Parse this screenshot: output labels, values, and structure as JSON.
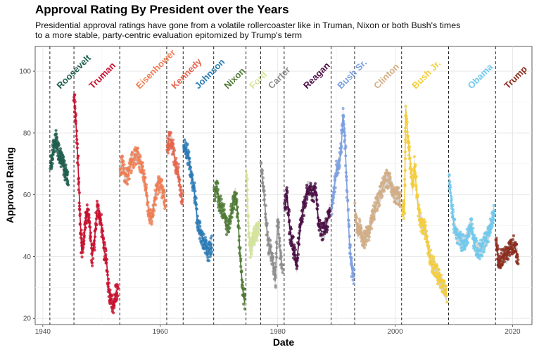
{
  "title": "Approval Rating By President over the Years",
  "subtitle_lines": [
    "Presidential approval ratings have gone from a volatile rollercoaster like in Truman, Nixon or both Bush's times",
    "to a more stable, party-centric evaluation epitomized by Trump's term"
  ],
  "chart_data": {
    "type": "scatter",
    "title": "Approval Rating By President over the Years",
    "xlabel": "Date",
    "ylabel": "Approval Rating",
    "xlim": [
      1938.7,
      2023.3
    ],
    "ylim": [
      18,
      108
    ],
    "x_ticks": [
      1940,
      1960,
      1980,
      2000,
      2020
    ],
    "y_ticks": [
      20,
      40,
      60,
      80,
      100
    ],
    "grid": true,
    "smooth_trend": true,
    "term_boundaries": [
      1941.2,
      1945.3,
      1953.1,
      1961.1,
      1963.9,
      1969.1,
      1974.6,
      1977.1,
      1981.1,
      1989.1,
      1993.1,
      2001.1,
      2009.1,
      2017.1
    ],
    "series": [
      {
        "name": "Roosevelt",
        "color": "#1f5e4e",
        "label_x": 1943.0,
        "points": [
          [
            1941.3,
            70
          ],
          [
            1941.6,
            72
          ],
          [
            1941.9,
            76
          ],
          [
            1942.2,
            78
          ],
          [
            1942.5,
            75
          ],
          [
            1942.8,
            74
          ],
          [
            1943.1,
            72
          ],
          [
            1943.4,
            70
          ],
          [
            1943.7,
            68
          ],
          [
            1944.0,
            67
          ],
          [
            1944.3,
            66
          ]
        ]
      },
      {
        "name": "Truman",
        "color": "#c8102e",
        "label_x": 1948.5,
        "points": [
          [
            1945.3,
            92
          ],
          [
            1945.6,
            85
          ],
          [
            1946.0,
            70
          ],
          [
            1946.3,
            55
          ],
          [
            1946.6,
            42
          ],
          [
            1947.0,
            45
          ],
          [
            1947.3,
            52
          ],
          [
            1947.6,
            55
          ],
          [
            1948.0,
            50
          ],
          [
            1948.4,
            40
          ],
          [
            1948.8,
            45
          ],
          [
            1949.2,
            55
          ],
          [
            1949.6,
            55
          ],
          [
            1950.0,
            50
          ],
          [
            1950.4,
            42
          ],
          [
            1950.8,
            40
          ],
          [
            1951.2,
            30
          ],
          [
            1951.6,
            25
          ],
          [
            1952.0,
            24
          ],
          [
            1952.4,
            28
          ],
          [
            1952.8,
            30
          ]
        ]
      },
      {
        "name": "Eisenhower",
        "color": "#f07d52",
        "label_x": 1956.5,
        "points": [
          [
            1953.2,
            68
          ],
          [
            1953.6,
            70
          ],
          [
            1954.0,
            66
          ],
          [
            1954.5,
            66
          ],
          [
            1955.0,
            70
          ],
          [
            1955.5,
            72
          ],
          [
            1956.0,
            73
          ],
          [
            1956.5,
            71
          ],
          [
            1957.0,
            68
          ],
          [
            1957.5,
            63
          ],
          [
            1958.0,
            55
          ],
          [
            1958.5,
            52
          ],
          [
            1959.0,
            58
          ],
          [
            1959.5,
            63
          ],
          [
            1960.0,
            64
          ],
          [
            1960.5,
            60
          ],
          [
            1960.9,
            58
          ]
        ]
      },
      {
        "name": "Kennedy",
        "color": "#e5654e",
        "label_x": 1962.5,
        "points": [
          [
            1961.2,
            75
          ],
          [
            1961.5,
            78
          ],
          [
            1961.8,
            78
          ],
          [
            1962.2,
            75
          ],
          [
            1962.6,
            70
          ],
          [
            1963.0,
            68
          ],
          [
            1963.4,
            62
          ],
          [
            1963.8,
            58
          ]
        ]
      },
      {
        "name": "Johnson",
        "color": "#2a7bb5",
        "label_x": 1966.5,
        "points": [
          [
            1964.0,
            76
          ],
          [
            1964.4,
            75
          ],
          [
            1964.8,
            72
          ],
          [
            1965.2,
            68
          ],
          [
            1965.6,
            64
          ],
          [
            1966.0,
            58
          ],
          [
            1966.4,
            50
          ],
          [
            1966.8,
            48
          ],
          [
            1967.2,
            46
          ],
          [
            1967.6,
            44
          ],
          [
            1968.0,
            41
          ],
          [
            1968.4,
            42
          ],
          [
            1968.8,
            44
          ]
        ]
      },
      {
        "name": "Nixon",
        "color": "#4f7a34",
        "label_x": 1971.5,
        "points": [
          [
            1969.2,
            60
          ],
          [
            1969.6,
            63
          ],
          [
            1970.0,
            58
          ],
          [
            1970.4,
            56
          ],
          [
            1970.8,
            55
          ],
          [
            1971.2,
            50
          ],
          [
            1971.6,
            50
          ],
          [
            1972.0,
            53
          ],
          [
            1972.4,
            58
          ],
          [
            1972.8,
            60
          ],
          [
            1973.2,
            54
          ],
          [
            1973.6,
            40
          ],
          [
            1974.0,
            30
          ],
          [
            1974.4,
            25
          ]
        ]
      },
      {
        "name": "Ford",
        "color": "#d4e59a",
        "label_x": 1975.8,
        "points": [
          [
            1974.7,
            68
          ],
          [
            1975.0,
            50
          ],
          [
            1975.3,
            42
          ],
          [
            1975.6,
            44
          ],
          [
            1975.9,
            46
          ],
          [
            1976.2,
            47
          ],
          [
            1976.5,
            48
          ],
          [
            1976.9,
            50
          ]
        ]
      },
      {
        "name": "Carter",
        "color": "#8c8c8c",
        "label_x": 1979.0,
        "points": [
          [
            1977.2,
            68
          ],
          [
            1977.6,
            62
          ],
          [
            1978.0,
            52
          ],
          [
            1978.4,
            44
          ],
          [
            1978.8,
            42
          ],
          [
            1979.2,
            38
          ],
          [
            1979.6,
            32
          ],
          [
            1980.0,
            52
          ],
          [
            1980.4,
            42
          ],
          [
            1980.8,
            36
          ]
        ]
      },
      {
        "name": "Reagan",
        "color": "#4a0f45",
        "label_x": 1985.0,
        "points": [
          [
            1981.2,
            55
          ],
          [
            1981.6,
            60
          ],
          [
            1982.0,
            50
          ],
          [
            1982.4,
            45
          ],
          [
            1982.8,
            42
          ],
          [
            1983.2,
            37
          ],
          [
            1983.6,
            45
          ],
          [
            1984.0,
            52
          ],
          [
            1984.5,
            56
          ],
          [
            1985.0,
            62
          ],
          [
            1985.5,
            62
          ],
          [
            1986.0,
            60
          ],
          [
            1986.5,
            61
          ],
          [
            1987.0,
            50
          ],
          [
            1987.5,
            48
          ],
          [
            1988.0,
            48
          ],
          [
            1988.5,
            52
          ],
          [
            1988.9,
            55
          ]
        ]
      },
      {
        "name": "Bush Sr.",
        "color": "#7c9fe0",
        "label_x": 1990.8,
        "points": [
          [
            1989.2,
            55
          ],
          [
            1989.6,
            62
          ],
          [
            1990.0,
            68
          ],
          [
            1990.4,
            70
          ],
          [
            1990.8,
            74
          ],
          [
            1991.1,
            86
          ],
          [
            1991.4,
            80
          ],
          [
            1991.8,
            62
          ],
          [
            1992.2,
            45
          ],
          [
            1992.6,
            36
          ],
          [
            1993.0,
            34
          ]
        ]
      },
      {
        "name": "Clinton",
        "color": "#d2ad85",
        "label_x": 1997.0,
        "points": [
          [
            1993.2,
            55
          ],
          [
            1993.6,
            48
          ],
          [
            1994.0,
            50
          ],
          [
            1994.4,
            46
          ],
          [
            1994.8,
            45
          ],
          [
            1995.2,
            47
          ],
          [
            1995.6,
            48
          ],
          [
            1996.0,
            52
          ],
          [
            1996.5,
            55
          ],
          [
            1997.0,
            58
          ],
          [
            1997.5,
            60
          ],
          [
            1998.0,
            63
          ],
          [
            1998.5,
            65
          ],
          [
            1999.0,
            65
          ],
          [
            1999.5,
            62
          ],
          [
            2000.0,
            60
          ],
          [
            2000.5,
            60
          ],
          [
            2000.9,
            58
          ]
        ]
      },
      {
        "name": "Bush Jr.",
        "color": "#f5cd3a",
        "label_x": 2003.5,
        "points": [
          [
            2001.2,
            56
          ],
          [
            2001.6,
            55
          ],
          [
            2001.8,
            88
          ],
          [
            2002.2,
            78
          ],
          [
            2002.6,
            70
          ],
          [
            2003.0,
            62
          ],
          [
            2003.3,
            70
          ],
          [
            2003.7,
            60
          ],
          [
            2004.2,
            52
          ],
          [
            2004.7,
            50
          ],
          [
            2005.2,
            48
          ],
          [
            2005.7,
            42
          ],
          [
            2006.2,
            38
          ],
          [
            2006.7,
            37
          ],
          [
            2007.2,
            34
          ],
          [
            2007.7,
            32
          ],
          [
            2008.2,
            30
          ],
          [
            2008.8,
            28
          ]
        ]
      },
      {
        "name": "Obama",
        "color": "#6ec9ed",
        "label_x": 2013.0,
        "points": [
          [
            2009.2,
            65
          ],
          [
            2009.6,
            58
          ],
          [
            2010.0,
            50
          ],
          [
            2010.5,
            47
          ],
          [
            2011.0,
            46
          ],
          [
            2011.5,
            44
          ],
          [
            2012.0,
            45
          ],
          [
            2012.5,
            48
          ],
          [
            2013.0,
            50
          ],
          [
            2013.5,
            44
          ],
          [
            2014.0,
            42
          ],
          [
            2014.5,
            42
          ],
          [
            2015.0,
            44
          ],
          [
            2015.5,
            46
          ],
          [
            2016.0,
            48
          ],
          [
            2016.5,
            52
          ],
          [
            2016.9,
            55
          ]
        ]
      },
      {
        "name": "Trump",
        "color": "#8b2d1e",
        "label_x": 2019.2,
        "points": [
          [
            2017.2,
            44
          ],
          [
            2017.5,
            40
          ],
          [
            2017.8,
            38
          ],
          [
            2018.2,
            40
          ],
          [
            2018.6,
            41
          ],
          [
            2019.0,
            40
          ],
          [
            2019.4,
            42
          ],
          [
            2019.8,
            43
          ],
          [
            2020.2,
            44
          ],
          [
            2020.6,
            42
          ],
          [
            2020.9,
            40
          ]
        ]
      }
    ]
  }
}
